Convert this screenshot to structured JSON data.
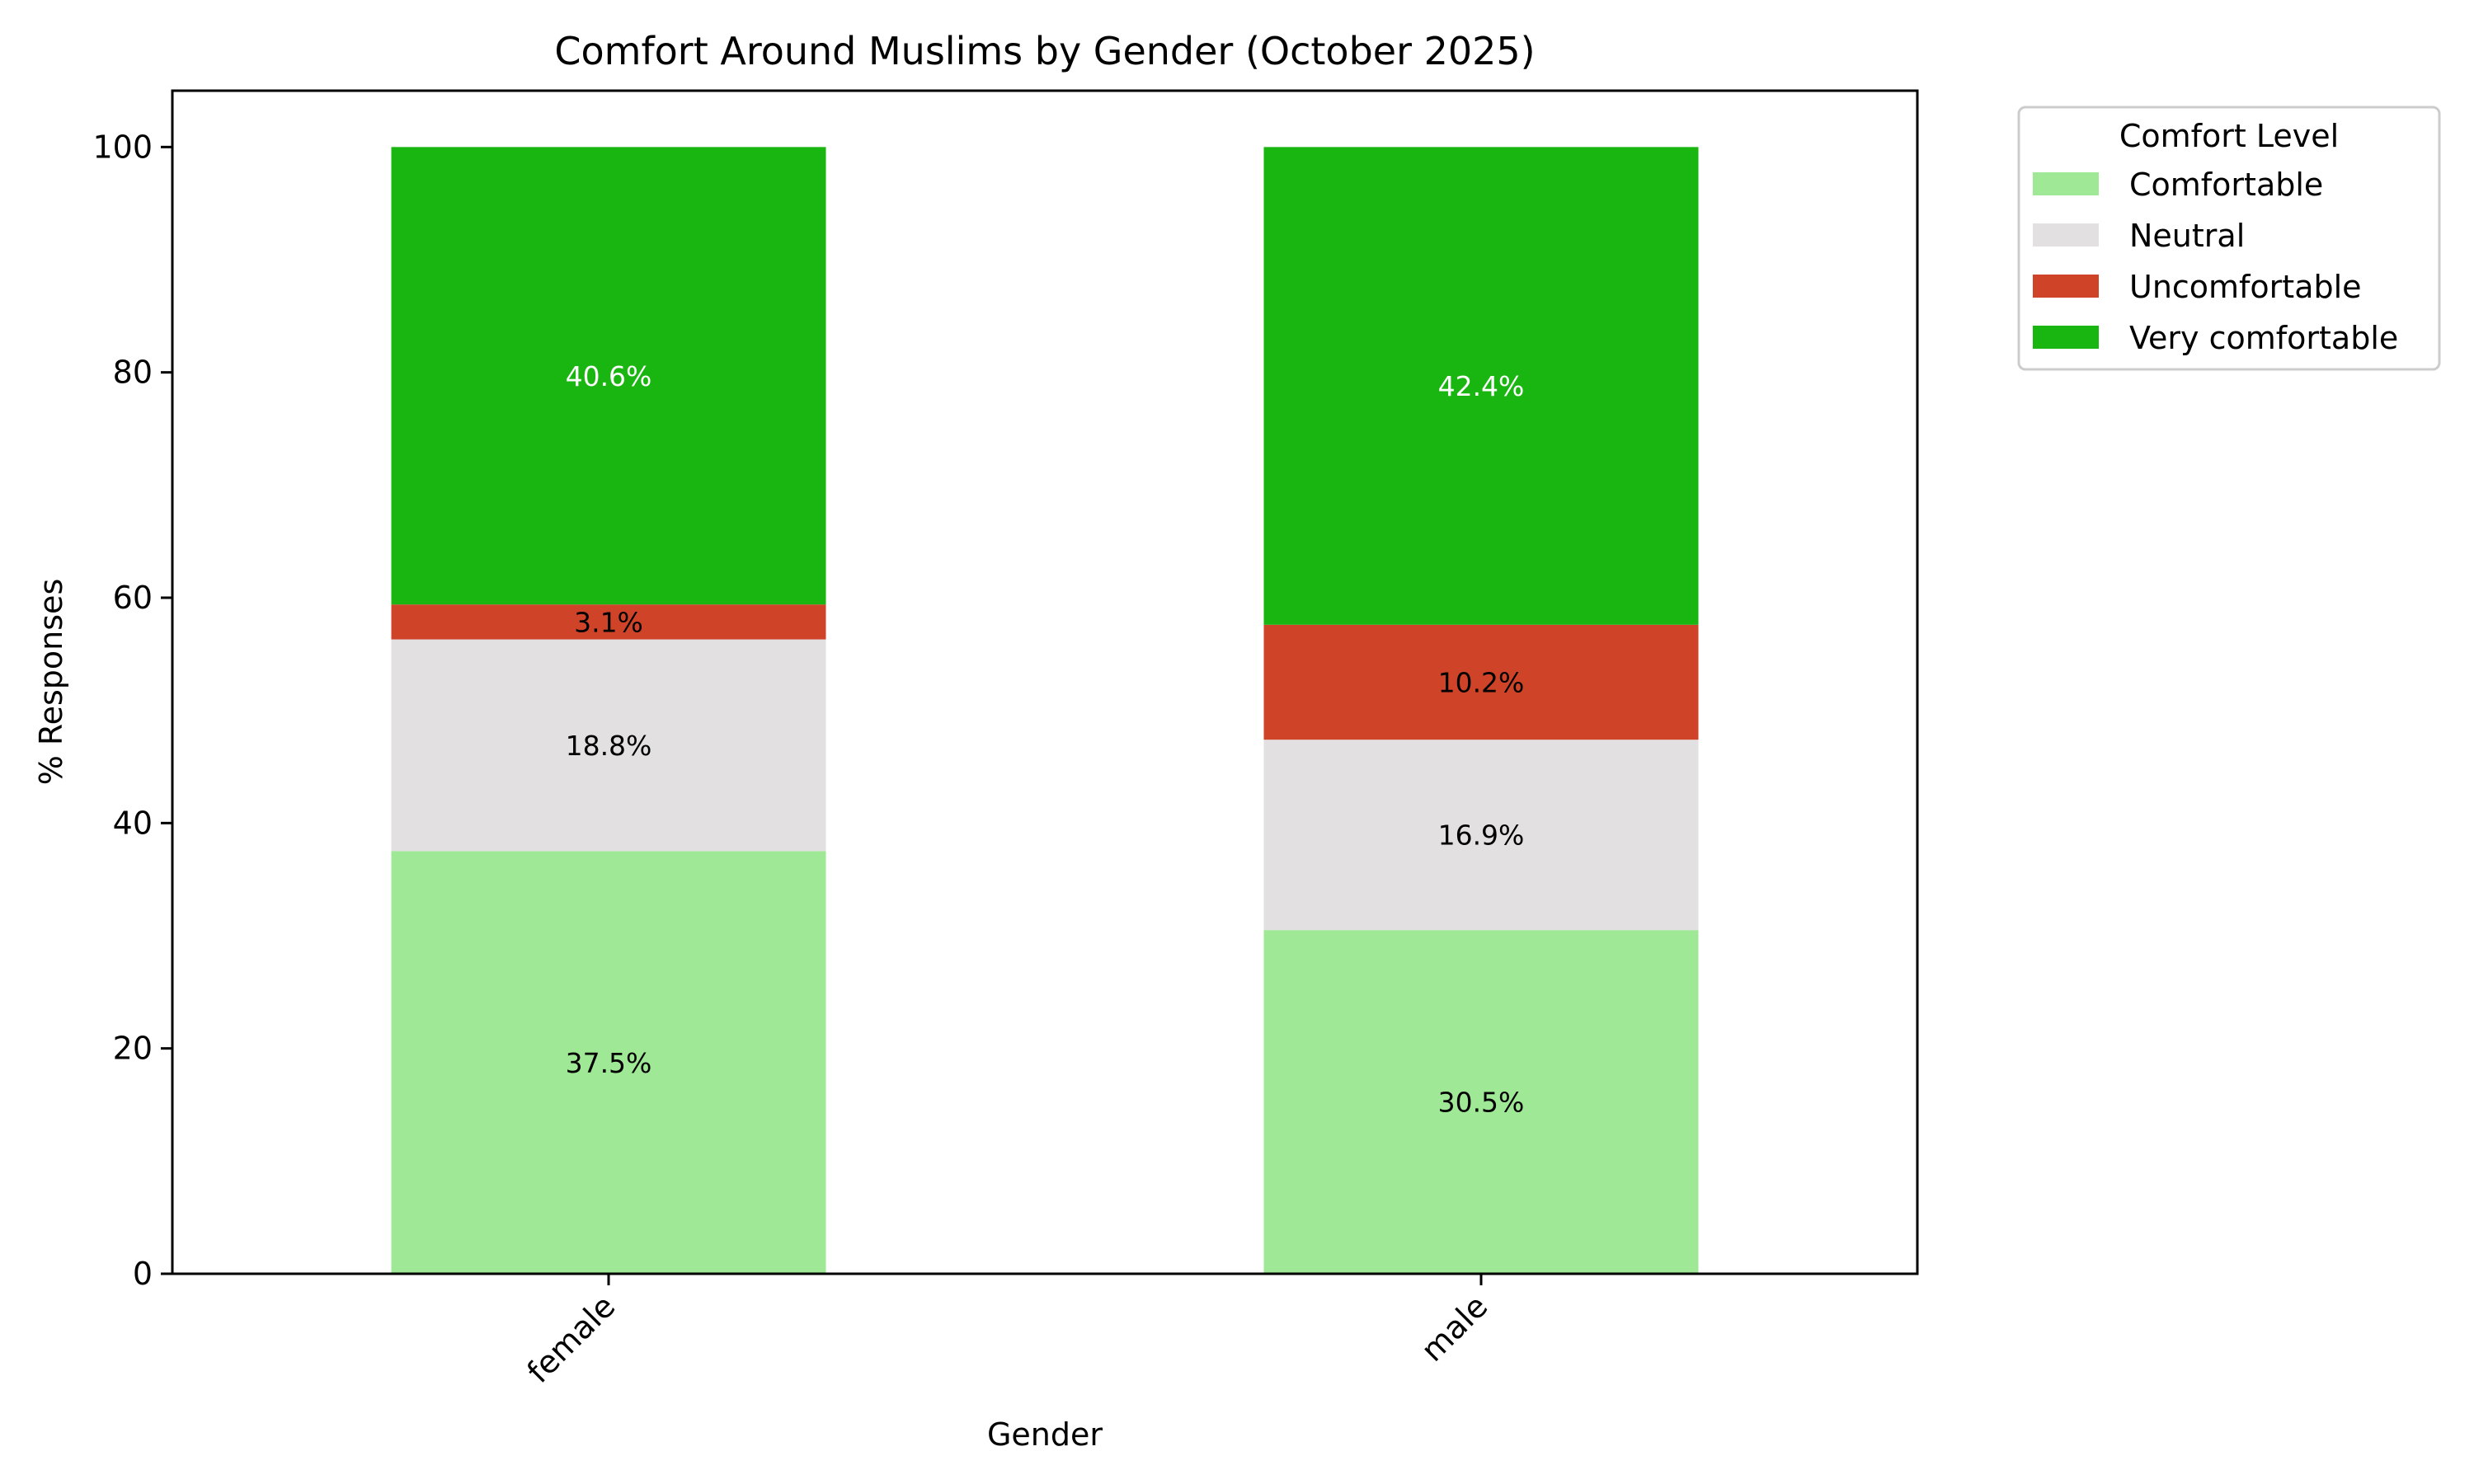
{
  "chart_data": {
    "type": "bar",
    "stacked": true,
    "title": "Comfort Around Muslims by Gender (October 2025)",
    "xlabel": "Gender",
    "ylabel": "% Responses",
    "ylim": [
      0,
      105
    ],
    "yticks": [
      0,
      20,
      40,
      60,
      80,
      100
    ],
    "categories": [
      "female",
      "male"
    ],
    "legend": {
      "title": "Comfort Level",
      "placement": "outside-top-right"
    },
    "grid": false,
    "series": [
      {
        "name": "Comfortable",
        "color": "#9ee896",
        "label_color": "#000000",
        "values": [
          37.5,
          30.5
        ],
        "labels": [
          "37.5%",
          "30.5%"
        ]
      },
      {
        "name": "Neutral",
        "color": "#e2e0e0",
        "label_color": "#000000",
        "values": [
          18.8,
          16.9
        ],
        "labels": [
          "18.8%",
          "16.9%"
        ]
      },
      {
        "name": "Uncomfortable",
        "color": "#cf4329",
        "label_color": "#000000",
        "values": [
          3.1,
          10.2
        ],
        "labels": [
          "3.1%",
          "10.2%"
        ]
      },
      {
        "name": "Very comfortable",
        "color": "#19b510",
        "label_color": "#ffffff",
        "values": [
          40.6,
          42.4
        ],
        "labels": [
          "40.6%",
          "42.4%"
        ]
      }
    ]
  }
}
